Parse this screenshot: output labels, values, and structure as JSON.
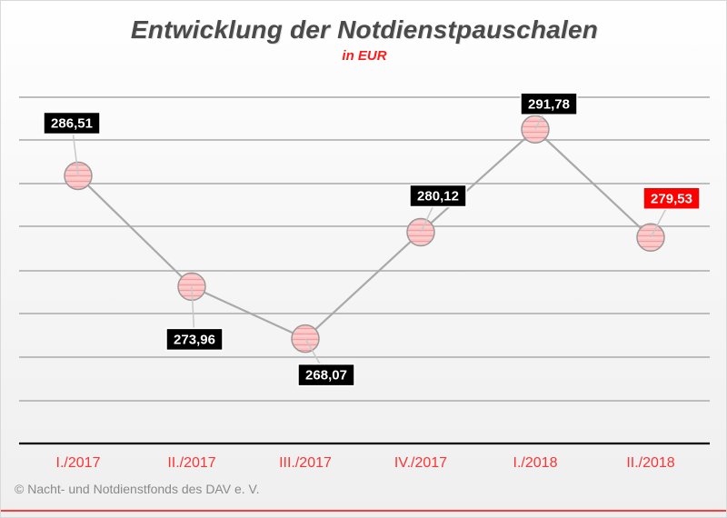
{
  "title": "Entwicklung der Notdienstpauschalen",
  "subtitle": "in EUR",
  "copyright": "© Nacht- und Notdienstfonds des DAV e. V.",
  "colors": {
    "title": "#4a4a4a",
    "subtitle": "#ff1a1a",
    "axis": "#000000",
    "grid": "#bdbdbd",
    "line": "#a9a9a9",
    "marker_fill": "#f7b1b1",
    "marker_stroke": "#999999",
    "label_black": "#000000",
    "label_red": "#ff0000",
    "category_text": "#ff3333",
    "footer_line": "#ff3b3b"
  },
  "chart_data": {
    "type": "line",
    "title": "Entwicklung der Notdienstpauschalen",
    "subtitle": "in EUR",
    "xlabel": "",
    "ylabel": "",
    "categories": [
      "I./2017",
      "II./2017",
      "III./2017",
      "IV./2017",
      "I./2018",
      "II./2018"
    ],
    "values": [
      286.51,
      273.96,
      268.07,
      280.12,
      291.78,
      279.53
    ],
    "data_labels": [
      "286,51",
      "273,96",
      "268,07",
      "280,12",
      "291,78",
      "279,53"
    ],
    "highlight_index": 5,
    "grid": true,
    "legend": false
  }
}
